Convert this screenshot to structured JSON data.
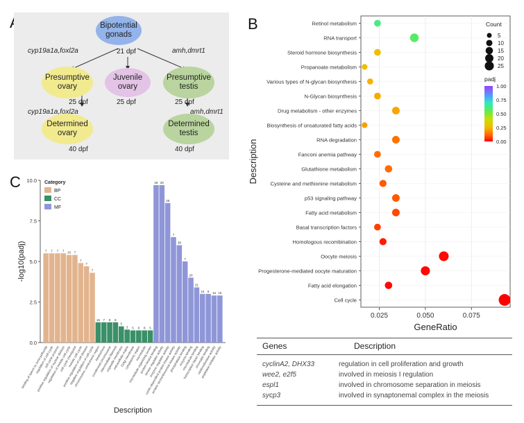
{
  "panels": {
    "a": "A",
    "b": "B",
    "c": "C"
  },
  "panel_a": {
    "nodes": {
      "bipotential": "Bipotential\ngonads",
      "pres_ovary": "Presumptive\novary",
      "juvenile": "Juvenile\novary",
      "pres_testis": "Presumptive\ntestis",
      "det_ovary": "Determined\novary",
      "det_testis": "Determined\ntestis"
    },
    "labels": {
      "dpf21": "21 dpf",
      "dpf25a": "25 dpf",
      "dpf25b": "25 dpf",
      "dpf25c": "25 dpf",
      "dpf40a": "40 dpf",
      "dpf40b": "40 dpf",
      "gene_left_top": "cyp19a1a,foxl2a",
      "gene_right_top": "amh,dmrt1",
      "gene_left_bottom": "cyp19a1a,foxl2a",
      "gene_right_bottom": "amh,dmrt1"
    },
    "colors": {
      "bipotential": "#93b3ea",
      "ovary": "#f2ea8f",
      "juvenile": "#e3c3e6",
      "testis": "#b9d49e",
      "background": "#ececec"
    }
  },
  "panel_b": {
    "xlabel": "GeneRatio",
    "ylabel": "Description",
    "xticks": [
      "0.025",
      "0.050",
      "0.075"
    ],
    "count_legend_title": "Count",
    "count_legend_values": [
      "5",
      "10",
      "15",
      "20",
      "25"
    ],
    "padj_legend_title": "padj",
    "padj_ticks": [
      "1.00",
      "0.75",
      "0.50",
      "0.25",
      "0.00"
    ]
  },
  "chart_data": [
    {
      "type": "scatter",
      "xlabel": "GeneRatio",
      "ylabel": "Description",
      "xlim": [
        0.015,
        0.096
      ],
      "points": [
        {
          "term": "Retinol metabolism",
          "x": 0.024,
          "count": 8,
          "padj": 0.62
        },
        {
          "term": "RNA transport",
          "x": 0.044,
          "count": 15,
          "padj": 0.58
        },
        {
          "term": "Steroid hormone biosynthesis",
          "x": 0.024,
          "count": 8,
          "padj": 0.28
        },
        {
          "term": "Propanoate metabolism",
          "x": 0.017,
          "count": 5,
          "padj": 0.26
        },
        {
          "term": "Various types of N-glycan biosynthesis",
          "x": 0.02,
          "count": 6,
          "padj": 0.24
        },
        {
          "term": "N-Glycan biosynthesis",
          "x": 0.024,
          "count": 8,
          "padj": 0.23
        },
        {
          "term": "Drug metabolism - other enzymes",
          "x": 0.034,
          "count": 11,
          "padj": 0.22
        },
        {
          "term": "Biosynthesis of unsaturated fatty acids",
          "x": 0.017,
          "count": 5,
          "padj": 0.21
        },
        {
          "term": "RNA degradation",
          "x": 0.034,
          "count": 11,
          "padj": 0.14
        },
        {
          "term": "Fanconi anemia pathway",
          "x": 0.024,
          "count": 8,
          "padj": 0.13
        },
        {
          "term": "Glutathione metabolism",
          "x": 0.03,
          "count": 10,
          "padj": 0.13
        },
        {
          "term": "Cysteine and methionine metabolism",
          "x": 0.027,
          "count": 9,
          "padj": 0.1
        },
        {
          "term": "p53 signaling pathway",
          "x": 0.034,
          "count": 11,
          "padj": 0.1
        },
        {
          "term": "Fatty acid metabolism",
          "x": 0.034,
          "count": 11,
          "padj": 0.08
        },
        {
          "term": "Basal transcription factors",
          "x": 0.024,
          "count": 8,
          "padj": 0.07
        },
        {
          "term": "Homologous recombination",
          "x": 0.027,
          "count": 9,
          "padj": 0.03
        },
        {
          "term": "Oocyte meiosis",
          "x": 0.06,
          "count": 20,
          "padj": 0.01
        },
        {
          "term": "Progesterone-mediated oocyte maturation",
          "x": 0.05,
          "count": 17,
          "padj": 0.01
        },
        {
          "term": "Fatty acid elongation",
          "x": 0.03,
          "count": 10,
          "padj": 0.01
        },
        {
          "term": "Cell cycle",
          "x": 0.093,
          "count": 31,
          "padj": 0.0
        }
      ]
    },
    {
      "type": "bar",
      "ylabel": "-log10(padj)",
      "xlabel": "Description",
      "ylim": [
        0,
        10
      ],
      "yticks": [
        "0.0",
        "2.5",
        "5.0",
        "7.5",
        "10.0"
      ],
      "legend_title": "Category",
      "series": [
        {
          "name": "BP",
          "color": "#e2b48e",
          "categories": [
            "binding of sperm to zona pellucida",
            "regulation of cell cycle",
            "cell cycle process",
            "positive regulation of nuclear division",
            "regulation of meiotic cell cycle",
            "cell cycle checkpoint",
            "meiotic cell cycle",
            "positive regulation of cell division",
            "negative regulation of cell cycle"
          ],
          "values": [
            5.5,
            5.5,
            5.5,
            5.5,
            5.4,
            5.4,
            4.9,
            4.7,
            4.3
          ],
          "labels": [
            "7",
            "7",
            "7",
            "7",
            "10",
            "7",
            "7",
            "7",
            "7"
          ]
        },
        {
          "name": "CC",
          "color": "#3a9068",
          "categories": [
            "chromosome, centromeric region",
            "kinetochore",
            "condensed chromosome",
            "intermediate filament",
            "organelle membrane",
            "extracellular matrix",
            "Golgi membrane",
            "cytoplasmic region",
            "microtubule",
            "microtubule organizing center"
          ],
          "values": [
            1.25,
            1.25,
            1.25,
            1.25,
            1.0,
            0.8,
            0.75,
            0.75,
            0.75,
            0.75
          ],
          "labels": [
            "15",
            "7",
            "8",
            "8",
            "5",
            "3",
            "5",
            "8",
            "8",
            "5"
          ]
        },
        {
          "name": "MF",
          "color": "#8f96d8",
          "categories": [
            "protein kinase binding",
            "kinase regulator activity",
            "enzyme regulator activity",
            "cyclin-dependent protein kinase activity",
            "protein serine/threonine kinase activity",
            "phosphatase binding",
            "enzyme binding",
            "microtubule binding",
            "transcription factor binding",
            "chromatin binding",
            "oxidoreductase activity",
            "peptidase inhibitor activity"
          ],
          "values": [
            9.7,
            9.7,
            8.6,
            6.5,
            6.0,
            5.0,
            4.0,
            3.4,
            3.0,
            3.0,
            2.9,
            2.9
          ],
          "labels": [
            "28",
            "28",
            "28",
            "7",
            "38",
            "7",
            "20",
            "31",
            "10",
            "9",
            "15",
            "15"
          ]
        }
      ]
    }
  ],
  "table": {
    "headers": [
      "Genes",
      "Description"
    ],
    "rows": [
      {
        "genes": "cyclinA2, DHX33",
        "description": "regulation in cell proliferation and growth"
      },
      {
        "genes": "wee2,  e2f5",
        "description": "involved in meiosis I regulation"
      },
      {
        "genes": "espl1",
        "description": "involved in chromosome separation in meiosis"
      },
      {
        "genes": "sycp3",
        "description": "involved in synaptonemal complex in the meiosis"
      }
    ]
  }
}
